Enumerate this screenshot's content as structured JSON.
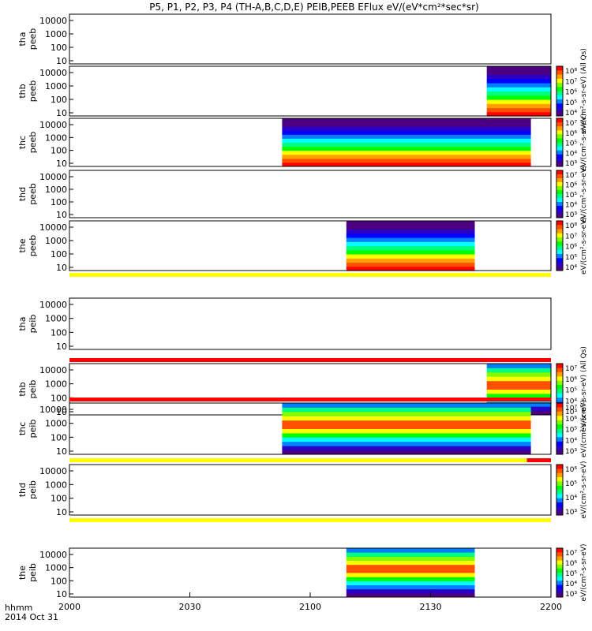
{
  "chart_data": {
    "type": "heatmap",
    "title": "P5, P1, P2, P3, P4 (TH-A,B,C,D,E) PEIB,PEEB EFlux eV/(eV*cm²*sec*sr)",
    "x_axis": {
      "ticks": [
        2000,
        2030,
        2100,
        2130,
        2200
      ],
      "labels": [
        "2000",
        "2030",
        "2100",
        "2130",
        "2200"
      ],
      "unit_label": "hhmm",
      "date_label": "2014 Oct 31",
      "range_hhmm": [
        "2000",
        "2200"
      ]
    },
    "y_axis": {
      "scale": "log",
      "unit": "eV",
      "tick_labels_type1": [
        "10",
        "100",
        "1000",
        "10000"
      ],
      "tick_labels_type2": [
        "10",
        "100",
        "1000",
        "10000"
      ]
    },
    "panels": [
      {
        "probe": "tha",
        "name": "tha peeb",
        "label1": "tha",
        "label2": "peeb",
        "species": "electron",
        "coverage": [],
        "colorbar": null
      },
      {
        "probe": "thb",
        "name": "thb peeb",
        "label1": "thb",
        "label2": "peeb",
        "species": "electron",
        "coverage": [
          [
            2144,
            2200
          ]
        ],
        "colorbar": {
          "ticks": [
            "10⁴",
            "10⁵",
            "10⁶",
            "10⁷",
            "10⁸"
          ],
          "title": "eV/(cm²-s-sr-eV) (All Qs)"
        }
      },
      {
        "probe": "thc",
        "name": "thc peeb",
        "label1": "thc",
        "label2": "peeb",
        "species": "electron",
        "coverage": [
          [
            2053,
            2155
          ]
        ],
        "colorbar": {
          "ticks": [
            "10³",
            "10⁴",
            "10⁵",
            "10⁶",
            "10⁷"
          ],
          "title": "eV/(cm²-s-sr-eV)"
        }
      },
      {
        "probe": "thd",
        "name": "thd peeb",
        "label1": "thd",
        "label2": "peeb",
        "species": "electron",
        "coverage": [],
        "colorbar": {
          "ticks": [
            "10³",
            "10⁴",
            "10⁵",
            "10⁶",
            "10⁷"
          ],
          "title": "eV/(cm²-s-sr-eV)"
        }
      },
      {
        "probe": "the",
        "name": "the peeb",
        "label1": "the",
        "label2": "peeb",
        "species": "electron",
        "coverage": [
          [
            2109,
            2141
          ]
        ],
        "colorbar": {
          "ticks": [
            "10⁴",
            "10⁵",
            "10⁶",
            "10⁷",
            "10⁸"
          ],
          "title": "eV/(cm²-s-sr-eV)"
        }
      },
      {
        "probe": "tha",
        "name": "tha peib",
        "label1": "tha",
        "label2": "peib",
        "species": "ion",
        "coverage": [],
        "colorbar": null
      },
      {
        "probe": "thb",
        "name": "thb peib",
        "label1": "thb",
        "label2": "peib",
        "species": "ion",
        "coverage": [
          [
            2144,
            2200
          ]
        ],
        "colorbar": {
          "ticks": [
            "10³",
            "10⁴",
            "10⁵",
            "10⁶",
            "10⁷"
          ],
          "title": "eV/(cm²-s-sr-eV) (All Qs)"
        }
      },
      {
        "probe": "thc",
        "name": "thc peib",
        "label1": "thc",
        "label2": "peib",
        "species": "ion",
        "coverage": [
          [
            2053,
            2155
          ]
        ],
        "colorbar": {
          "ticks": [
            "10³",
            "10⁴",
            "10⁵",
            "10⁶",
            "10⁷"
          ],
          "title": "eV/(cm²-s-sr-eV)"
        }
      },
      {
        "probe": "thd",
        "name": "thd peib",
        "label1": "thd",
        "label2": "peib",
        "species": "ion",
        "coverage": [],
        "colorbar": {
          "ticks": [
            "10³",
            "10⁴",
            "10⁵",
            "10⁶"
          ],
          "title": "eV/(cm²-s-sr-eV)"
        }
      },
      {
        "probe": "the",
        "name": "the peib",
        "label1": "the",
        "label2": "peib",
        "species": "ion",
        "coverage": [
          [
            2109,
            2141
          ]
        ],
        "colorbar": {
          "ticks": [
            "10³",
            "10⁴",
            "10⁵",
            "10⁶",
            "10⁷"
          ],
          "title": "eV/(cm²-s-sr-eV)"
        }
      }
    ],
    "status_bars": [
      {
        "color": "yellow",
        "segments": [
          [
            "2000",
            "2200"
          ]
        ]
      },
      {
        "color": "red",
        "segments": [
          [
            "2000",
            "2200"
          ]
        ]
      },
      {
        "color": "red",
        "segments": [
          [
            "2000",
            "2200"
          ]
        ]
      },
      {
        "color": "yellow",
        "segments": [
          [
            "2000",
            "2154"
          ]
        ],
        "second_color": "red",
        "second_segments": [
          [
            "2154",
            "2200"
          ]
        ]
      },
      {
        "color": "yellow",
        "segments": [
          [
            "2000",
            "2200"
          ]
        ]
      }
    ],
    "colors": {
      "red": "#ff0000",
      "yellow": "#ffff00",
      "green": "#00ff00",
      "cyan": "#00ffff",
      "blue": "#0000ff",
      "purple": "#4b0082"
    }
  }
}
